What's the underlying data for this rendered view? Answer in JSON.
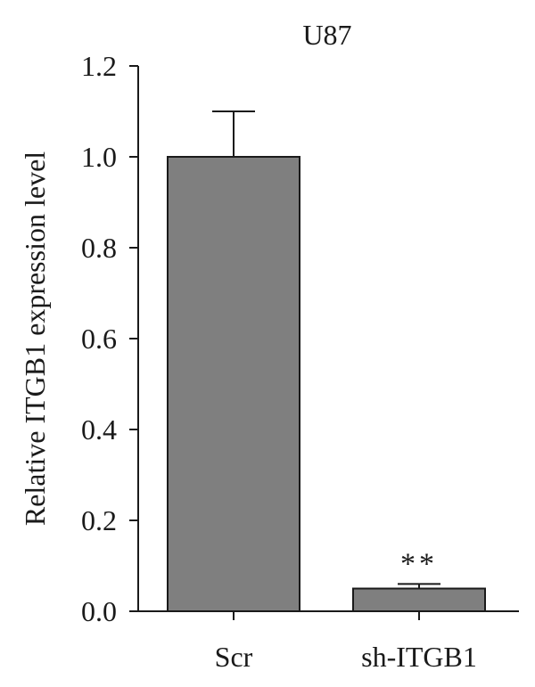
{
  "chart_data": {
    "type": "bar",
    "title": "U87",
    "ylabel": "Relative ITGB1 expression level",
    "xlabel": "",
    "categories": [
      "Scr",
      "sh-ITGB1"
    ],
    "values": [
      1.0,
      0.05
    ],
    "errors": [
      0.1,
      0.01
    ],
    "annotations": [
      "",
      "**"
    ],
    "ylim": [
      0,
      1.2
    ],
    "yticks": [
      0.0,
      0.2,
      0.4,
      0.6,
      0.8,
      1.0,
      1.2
    ],
    "ytick_labels": [
      "0.0",
      "0.2",
      "0.4",
      "0.6",
      "0.8",
      "1.0",
      "1.2"
    ],
    "bar_color": "#7f7f7f",
    "grid": false,
    "legend": "none"
  }
}
